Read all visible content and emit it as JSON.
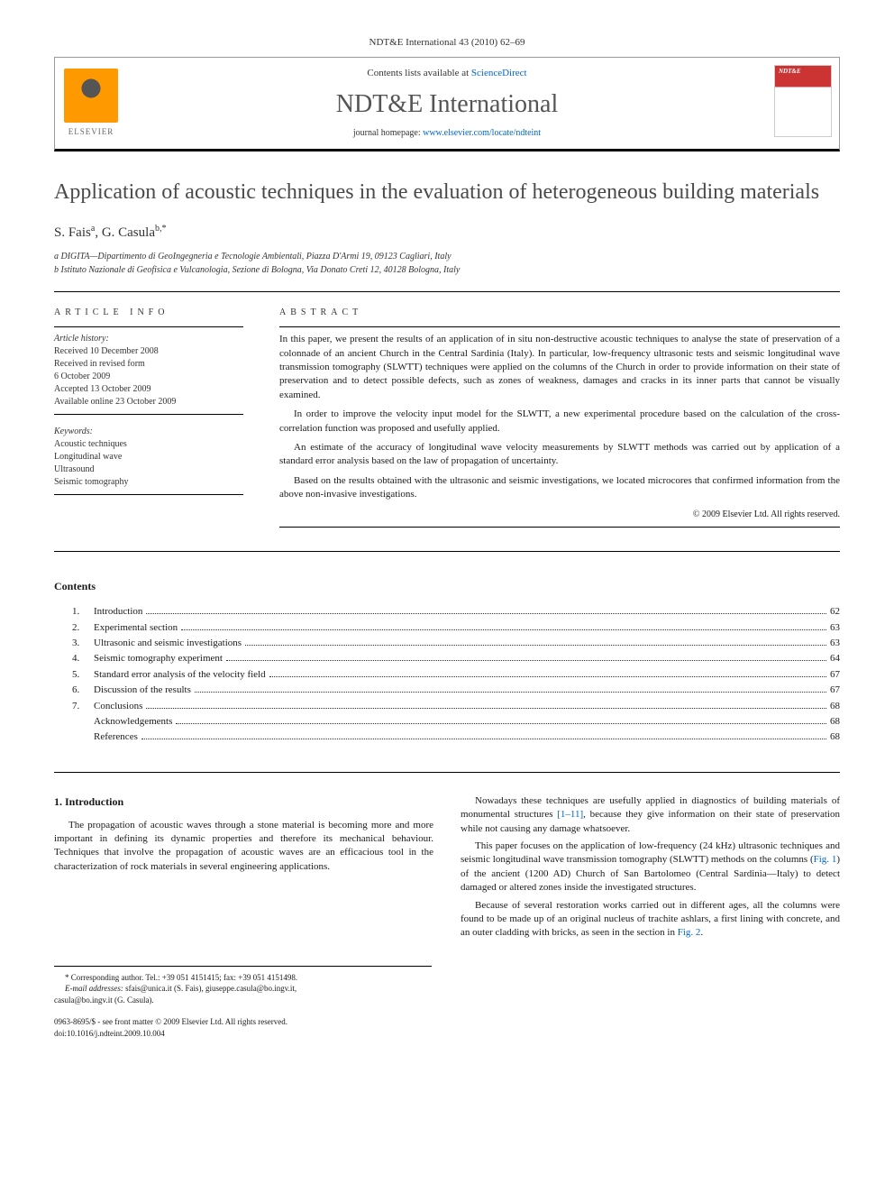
{
  "journal_header": "NDT&E International 43 (2010) 62–69",
  "contents_box": {
    "contents_label_prefix": "Contents lists available at ",
    "contents_link": "ScienceDirect",
    "journal_title": "NDT&E International",
    "homepage_prefix": "journal homepage: ",
    "homepage_link": "www.elsevier.com/locate/ndteint",
    "elsevier": "ELSEVIER",
    "cover_badge": "NDT&E"
  },
  "article": {
    "title": "Application of acoustic techniques in the evaluation of heterogeneous building materials",
    "authors_html": "S. Fais <sup>a</sup>, G. Casula <sup>b,*</sup>",
    "author1": "S. Fais",
    "author1_sup": "a",
    "author2": "G. Casula",
    "author2_sup": "b,*",
    "affiliations": {
      "a": "a DIGITA—Dipartimento di GeoIngegneria e Tecnologie Ambientali, Piazza D'Armi 19, 09123 Cagliari, Italy",
      "b": "b Istituto Nazionale di Geofisica e Vulcanologia, Sezione di Bologna, Via Donato Creti 12, 40128 Bologna, Italy"
    }
  },
  "article_info": {
    "heading": "ARTICLE INFO",
    "history_label": "Article history:",
    "received": "Received 10 December 2008",
    "revised": "Received in revised form",
    "revised_date": "6 October 2009",
    "accepted": "Accepted 13 October 2009",
    "online": "Available online 23 October 2009",
    "keywords_label": "Keywords:",
    "keywords": [
      "Acoustic techniques",
      "Longitudinal wave",
      "Ultrasound",
      "Seismic tomography"
    ]
  },
  "abstract": {
    "heading": "ABSTRACT",
    "p1": "In this paper, we present the results of an application of in situ non-destructive acoustic techniques to analyse the state of preservation of a colonnade of an ancient Church in the Central Sardinia (Italy). In particular, low-frequency ultrasonic tests and seismic longitudinal wave transmission tomography (SLWTT) techniques were applied on the columns of the Church in order to provide information on their state of preservation and to detect possible defects, such as zones of weakness, damages and cracks in its inner parts that cannot be visually examined.",
    "p2": "In order to improve the velocity input model for the SLWTT, a new experimental procedure based on the calculation of the cross-correlation function was proposed and usefully applied.",
    "p3": "An estimate of the accuracy of longitudinal wave velocity measurements by SLWTT methods was carried out by application of a standard error analysis based on the law of propagation of uncertainty.",
    "p4": "Based on the results obtained with the ultrasonic and seismic investigations, we located microcores that confirmed information from the above non-invasive investigations.",
    "copyright": "© 2009 Elsevier Ltd. All rights reserved."
  },
  "toc": {
    "heading": "Contents",
    "items": [
      {
        "num": "1.",
        "title": "Introduction",
        "page": "62"
      },
      {
        "num": "2.",
        "title": "Experimental section",
        "page": "63"
      },
      {
        "num": "3.",
        "title": "Ultrasonic and seismic investigations",
        "page": "63"
      },
      {
        "num": "4.",
        "title": "Seismic tomography experiment",
        "page": "64"
      },
      {
        "num": "5.",
        "title": "Standard error analysis of the velocity field",
        "page": "67"
      },
      {
        "num": "6.",
        "title": "Discussion of the results",
        "page": "67"
      },
      {
        "num": "7.",
        "title": "Conclusions",
        "page": "68"
      },
      {
        "num": "",
        "title": "Acknowledgements",
        "page": "68"
      },
      {
        "num": "",
        "title": "References",
        "page": "68"
      }
    ]
  },
  "body": {
    "intro_heading": "1. Introduction",
    "left_p1": "The propagation of acoustic waves through a stone material is becoming more and more important in defining its dynamic properties and therefore its mechanical behaviour. Techniques that involve the propagation of acoustic waves are an efficacious tool in the characterization of rock materials in several engineering applications.",
    "right_p1_a": "Nowadays these techniques are usefully applied in diagnostics of building materials of monumental structures ",
    "right_p1_ref": "[1–11]",
    "right_p1_b": ", because they give information on their state of preservation while not causing any damage whatsoever.",
    "right_p2_a": "This paper focuses on the application of low-frequency (24 kHz) ultrasonic techniques and seismic longitudinal wave transmission tomography (SLWTT) methods on the columns (",
    "right_p2_fig": "Fig. 1",
    "right_p2_b": ") of the ancient (1200 AD) Church of San Bartolomeo (Central Sardinia—Italy) to detect damaged or altered zones inside the investigated structures.",
    "right_p3_a": "Because of several restoration works carried out in different ages, all the columns were found to be made up of an original nucleus of trachite ashlars, a first lining with concrete, and an outer cladding with bricks, as seen in the section in ",
    "right_p3_fig": "Fig. 2",
    "right_p3_b": "."
  },
  "footnote": {
    "corr": "* Corresponding author. Tel.: +39 051 4151415; fax: +39 051 4151498.",
    "emails_label": "E-mail addresses:",
    "email1": "sfais@unica.it (S. Fais),",
    "email2": "giuseppe.casula@bo.ingv.it,",
    "email3": "casula@bo.ingv.it (G. Casula)."
  },
  "doi": {
    "line1": "0963-8695/$ - see front matter © 2009 Elsevier Ltd. All rights reserved.",
    "line2": "doi:10.1016/j.ndteint.2009.10.004"
  },
  "colors": {
    "link": "#0066cc",
    "text": "#1a1a1a",
    "heading_gray": "#4a4a4a",
    "elsevier_orange": "#ff9900",
    "cover_red": "#cc3333"
  }
}
